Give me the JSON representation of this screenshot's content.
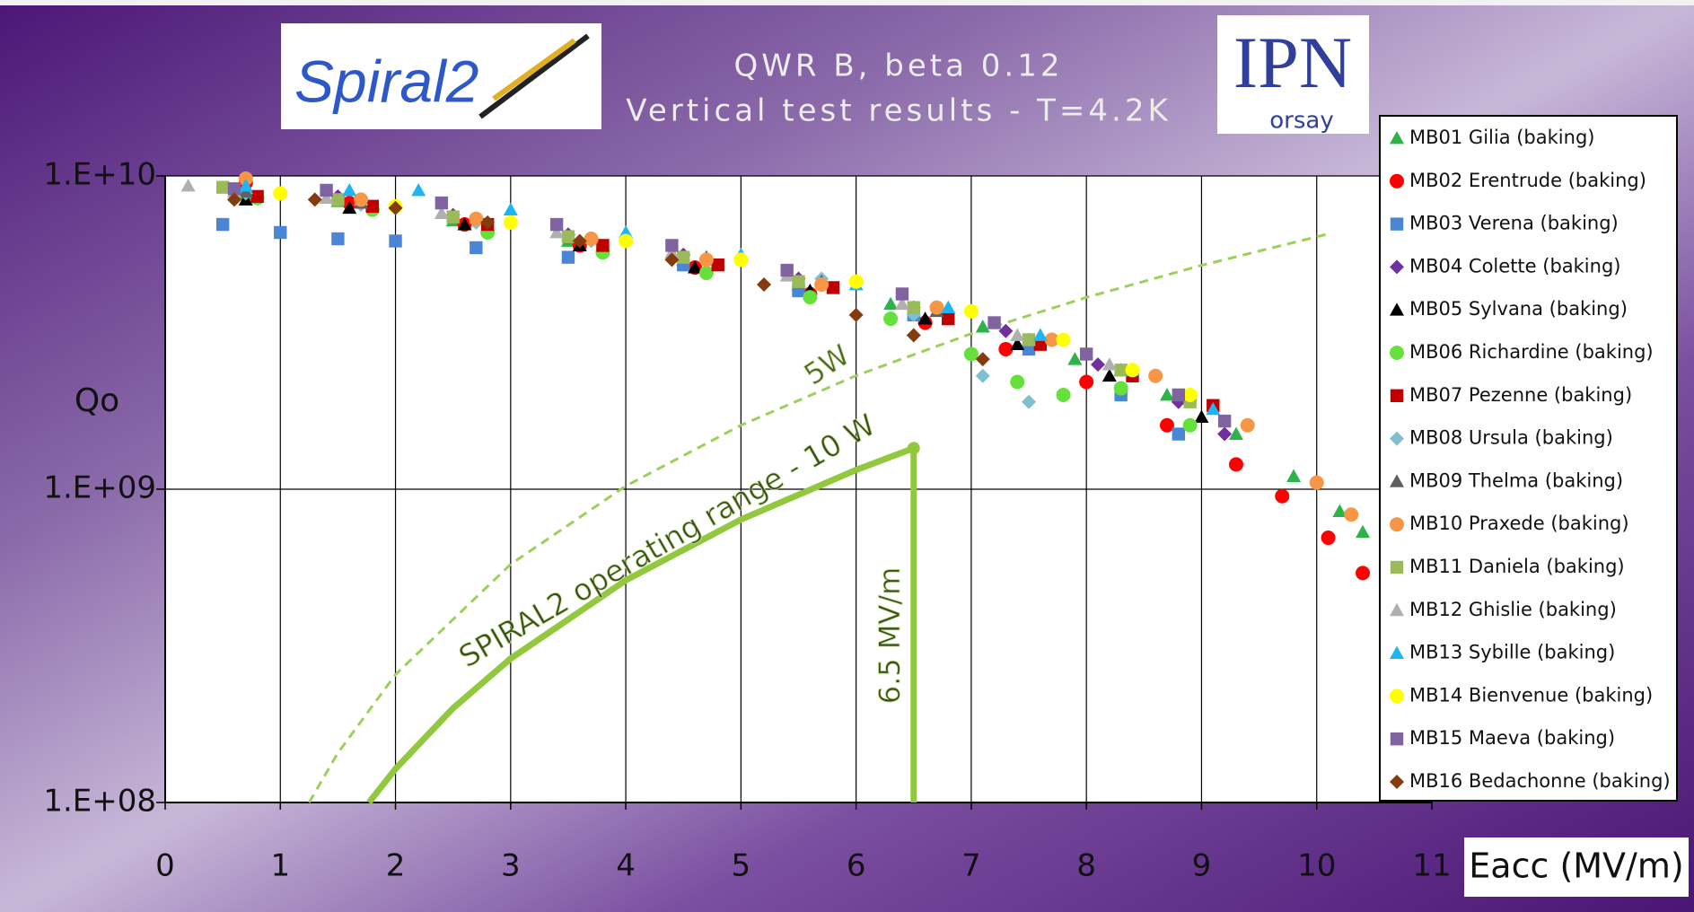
{
  "logos": {
    "left": "Spiral2",
    "right": "IPN",
    "right_sub": "orsay"
  },
  "chart_data": {
    "type": "scatter",
    "title": "QWR B, beta 0.12",
    "subtitle": "Vertical test results - T=4.2K",
    "x_label": "Eacc (MV/m)",
    "y_label": "Qo",
    "log_y": true,
    "grid": true,
    "xlim": [
      0,
      11
    ],
    "xticks": [
      0,
      1,
      2,
      3,
      4,
      5,
      6,
      7,
      8,
      9,
      10,
      11
    ],
    "ylim": [
      100000000,
      10000000000
    ],
    "yticks": [
      {
        "value": 100000000,
        "label": "1.E+08"
      },
      {
        "value": 1000000000,
        "label": "1.E+09"
      },
      {
        "value": 10000000000,
        "label": "1.E+10"
      }
    ],
    "series": [
      {
        "name": "MB01 Gilia (baking)",
        "color": "#2db34a",
        "marker": "triangle",
        "x": [
          0.7,
          1.5,
          2.5,
          3.5,
          4.5,
          5.5,
          6.3,
          7.1,
          7.9,
          8.7,
          9.3,
          9.8,
          10.2,
          10.4
        ],
        "values": [
          8700000000.0,
          8300000000.0,
          7200000000.0,
          6200000000.0,
          5400000000.0,
          4500000000.0,
          3900000000.0,
          3300000000.0,
          2600000000.0,
          2000000000.0,
          1500000000.0,
          1100000000.0,
          850000000.0,
          730000000.0
        ]
      },
      {
        "name": "MB02 Erentrude (baking)",
        "color": "#ff0000",
        "marker": "circle",
        "x": [
          0.7,
          1.6,
          2.6,
          3.6,
          4.6,
          5.6,
          6.6,
          7.3,
          8,
          8.7,
          9.3,
          9.7,
          10.1,
          10.4
        ],
        "values": [
          9500000000.0,
          8200000000.0,
          7000000000.0,
          6000000000.0,
          5100000000.0,
          4200000000.0,
          3400000000.0,
          2800000000.0,
          2200000000.0,
          1600000000.0,
          1200000000.0,
          950000000.0,
          700000000.0,
          540000000.0
        ]
      },
      {
        "name": "MB03 Verena (baking)",
        "color": "#4a86d6",
        "marker": "square",
        "x": [
          0.5,
          1,
          1.5,
          2,
          2.7,
          3.5,
          4.5,
          5.5,
          6.5,
          7.5,
          8.3,
          8.8
        ],
        "values": [
          7000000000.0,
          6600000000.0,
          6300000000.0,
          6200000000.0,
          5900000000.0,
          5500000000.0,
          5200000000.0,
          4300000000.0,
          3600000000.0,
          2800000000.0,
          2000000000.0,
          1500000000.0
        ]
      },
      {
        "name": "MB04 Colette (baking)",
        "color": "#7030a0",
        "marker": "diamond",
        "x": [
          0.6,
          1.5,
          2.5,
          3.5,
          4.5,
          5.5,
          6.5,
          7.3,
          8.1,
          8.8,
          9.2
        ],
        "values": [
          9000000000.0,
          8600000000.0,
          7500000000.0,
          6500000000.0,
          5600000000.0,
          4700000000.0,
          3800000000.0,
          3200000000.0,
          2500000000.0,
          1900000000.0,
          1500000000.0
        ]
      },
      {
        "name": "MB05 Sylvana (baking)",
        "color": "#000000",
        "marker": "triangle",
        "x": [
          0.7,
          1.6,
          2.6,
          3.6,
          4.6,
          5.6,
          6.6,
          7.4,
          8.2,
          9
        ],
        "values": [
          8400000000.0,
          7900000000.0,
          7000000000.0,
          6000000000.0,
          5100000000.0,
          4300000000.0,
          3500000000.0,
          2900000000.0,
          2300000000.0,
          1700000000.0
        ]
      },
      {
        "name": "MB06 Richardine (baking)",
        "color": "#66e03a",
        "marker": "circle",
        "x": [
          0.8,
          1.8,
          2.8,
          3.8,
          4.7,
          5.6,
          6.3,
          7,
          7.4,
          7.8,
          8.3,
          8.9
        ],
        "values": [
          8500000000.0,
          7800000000.0,
          6600000000.0,
          5700000000.0,
          4900000000.0,
          4100000000.0,
          3500000000.0,
          2700000000.0,
          2200000000.0,
          2000000000.0,
          2100000000.0,
          1600000000.0
        ]
      },
      {
        "name": "MB07 Pezenne (baking)",
        "color": "#c00000",
        "marker": "square",
        "x": [
          0.8,
          1.8,
          2.8,
          3.8,
          4.8,
          5.8,
          6.8,
          7.6,
          8.4,
          9.1
        ],
        "values": [
          8600000000.0,
          8000000000.0,
          7000000000.0,
          6000000000.0,
          5200000000.0,
          4400000000.0,
          3500000000.0,
          2900000000.0,
          2300000000.0,
          1850000000.0
        ]
      },
      {
        "name": "MB08 Ursula (baking)",
        "color": "#7fc0cf",
        "marker": "diamond",
        "x": [
          0.7,
          1.7,
          2.7,
          3.7,
          4.7,
          5.7,
          6.5,
          7.1,
          7.5
        ],
        "values": [
          8800000000.0,
          8100000000.0,
          7100000000.0,
          6200000000.0,
          5400000000.0,
          4700000000.0,
          3600000000.0,
          2300000000.0,
          1900000000.0
        ]
      },
      {
        "name": "MB09 Thelma (baking)",
        "color": "#606060",
        "marker": "triangle",
        "x": [
          0.7,
          1.7,
          2.7,
          3.7,
          4.7,
          5.7,
          6.7,
          7.5,
          8.3,
          8.9
        ],
        "values": [
          8900000000.0,
          8200000000.0,
          7300000000.0,
          6300000000.0,
          5500000000.0,
          4600000000.0,
          3700000000.0,
          3000000000.0,
          2400000000.0,
          2000000000.0
        ]
      },
      {
        "name": "MB10 Praxede (baking)",
        "color": "#f79646",
        "marker": "circle",
        "x": [
          0.7,
          1.7,
          2.7,
          3.7,
          4.7,
          5.7,
          6.7,
          7.7,
          8.6,
          9.4,
          10,
          10.3
        ],
        "values": [
          9800000000.0,
          8400000000.0,
          7300000000.0,
          6300000000.0,
          5400000000.0,
          4500000000.0,
          3800000000.0,
          3000000000.0,
          2300000000.0,
          1600000000.0,
          1050000000.0,
          830000000.0
        ]
      },
      {
        "name": "MB11 Daniela (baking)",
        "color": "#9bbb59",
        "marker": "square",
        "x": [
          0.5,
          1.5,
          2.5,
          3.5,
          4.5,
          5.5,
          6.5,
          7.5,
          8.3,
          8.9
        ],
        "values": [
          9200000000.0,
          8400000000.0,
          7400000000.0,
          6400000000.0,
          5500000000.0,
          4600000000.0,
          3800000000.0,
          3000000000.0,
          2400000000.0,
          1900000000.0
        ]
      },
      {
        "name": "MB12 Ghislie (baking)",
        "color": "#b0b0b0",
        "marker": "triangle",
        "x": [
          0.2,
          0.6,
          1.4,
          2.4,
          3.4,
          4.4,
          5.4,
          6.4,
          7.4,
          8.2
        ],
        "values": [
          9300000000.0,
          8900000000.0,
          8500000000.0,
          7600000000.0,
          6600000000.0,
          5700000000.0,
          4800000000.0,
          3900000000.0,
          3100000000.0,
          2500000000.0
        ]
      },
      {
        "name": "MB13 Sybille (baking)",
        "color": "#1fb5f5",
        "marker": "triangle",
        "x": [
          0.7,
          1.6,
          2.2,
          3,
          4,
          5,
          6,
          6.8,
          7.6,
          8.4,
          9.1
        ],
        "values": [
          9300000000.0,
          9000000000.0,
          9000000000.0,
          7800000000.0,
          6600000000.0,
          5600000000.0,
          4500000000.0,
          3800000000.0,
          3100000000.0,
          2400000000.0,
          1800000000.0
        ]
      },
      {
        "name": "MB14 Bienvenue (baking)",
        "color": "#ffff00",
        "marker": "circle",
        "x": [
          1,
          2,
          3,
          4,
          5,
          6,
          7,
          7.8,
          8.4,
          8.9
        ],
        "values": [
          8800000000.0,
          8000000000.0,
          7100000000.0,
          6200000000.0,
          5400000000.0,
          4600000000.0,
          3700000000.0,
          3000000000.0,
          2400000000.0,
          2000000000.0
        ]
      },
      {
        "name": "MB15 Maeva (baking)",
        "color": "#8064a2",
        "marker": "square",
        "x": [
          0.6,
          1.4,
          2.4,
          3.4,
          4.4,
          5.4,
          6.4,
          7.2,
          8,
          8.8,
          9.2
        ],
        "values": [
          9100000000.0,
          9000000000.0,
          8200000000.0,
          7000000000.0,
          6000000000.0,
          5000000000.0,
          4200000000.0,
          3400000000.0,
          2700000000.0,
          2000000000.0,
          1650000000.0
        ]
      },
      {
        "name": "MB16 Bedachonne (baking)",
        "color": "#843c0c",
        "marker": "diamond",
        "x": [
          0.6,
          1.3,
          2,
          2.8,
          3.6,
          4.4,
          5.2,
          6,
          6.5,
          7.1
        ],
        "values": [
          8400000000.0,
          8400000000.0,
          7900000000.0,
          7100000000.0,
          6200000000.0,
          5400000000.0,
          4500000000.0,
          3600000000.0,
          3100000000.0,
          2600000000.0
        ]
      }
    ],
    "curves": [
      {
        "label": "5W",
        "color": "#9bd15a",
        "dashed": true,
        "x": [
          1.25,
          1.5,
          2,
          3,
          4,
          5,
          6,
          7,
          8,
          9,
          10.1
        ],
        "values": [
          100000000.0,
          144000000.0,
          256000000.0,
          576000000.0,
          1024000000.0,
          1600000000.0,
          2304000000.0,
          3136000000.0,
          4096000000.0,
          5184000000.0,
          6529000000.0
        ]
      },
      {
        "label": "SPIRAL2 operating range - 10 W",
        "color": "#92c83e",
        "dashed": false,
        "x": [
          1.77,
          2,
          2.5,
          3,
          4,
          5,
          6,
          6.5
        ],
        "values": [
          100000000.0,
          128000000.0,
          200000000.0,
          288000000.0,
          512000000.0,
          800000000.0,
          1152000000.0,
          1352000000.0
        ]
      },
      {
        "label": "6.5 MV/m",
        "color": "#92c83e",
        "dashed": false,
        "x": [
          6.5,
          6.5
        ],
        "values": [
          100000000.0,
          1352000000.0
        ]
      }
    ]
  }
}
